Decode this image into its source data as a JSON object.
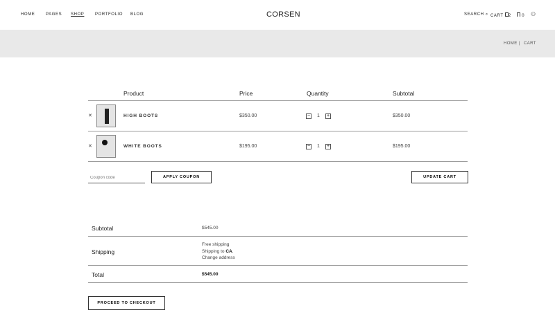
{
  "header": {
    "nav": [
      "HOME",
      "PAGES",
      "SHOP",
      "PORTFOLIO",
      "BLOG"
    ],
    "active": "SHOP",
    "logo": "CORSEN",
    "search": "SEARCH",
    "cart": "CART",
    "cart_count": "2",
    "wishlist_count": "0"
  },
  "breadcrumb": {
    "home": "HOME",
    "sep": "|",
    "current": "CART"
  },
  "table": {
    "headers": [
      "Product",
      "Price",
      "Quantity",
      "Subtotal"
    ],
    "rows": [
      {
        "name": "HIGH BOOTS",
        "price": "$350.00",
        "qty": "1",
        "subtotal": "$350.00"
      },
      {
        "name": "WHITE BOOTS",
        "price": "$195.00",
        "qty": "1",
        "subtotal": "$195.00"
      }
    ]
  },
  "coupon": {
    "placeholder": "Coupon code",
    "apply": "APPLY COUPON",
    "update": "UPDATE CART"
  },
  "totals": {
    "subtotal_label": "Subtotal",
    "subtotal": "$545.00",
    "shipping_label": "Shipping",
    "shipping_method": "Free shipping",
    "shipping_to": "Shipping to ",
    "shipping_region": "CA",
    "shipping_period": ".",
    "change_address": "Change address",
    "total_label": "Total",
    "total": "$545.00",
    "checkout": "PROCEED TO CHECKOUT"
  }
}
